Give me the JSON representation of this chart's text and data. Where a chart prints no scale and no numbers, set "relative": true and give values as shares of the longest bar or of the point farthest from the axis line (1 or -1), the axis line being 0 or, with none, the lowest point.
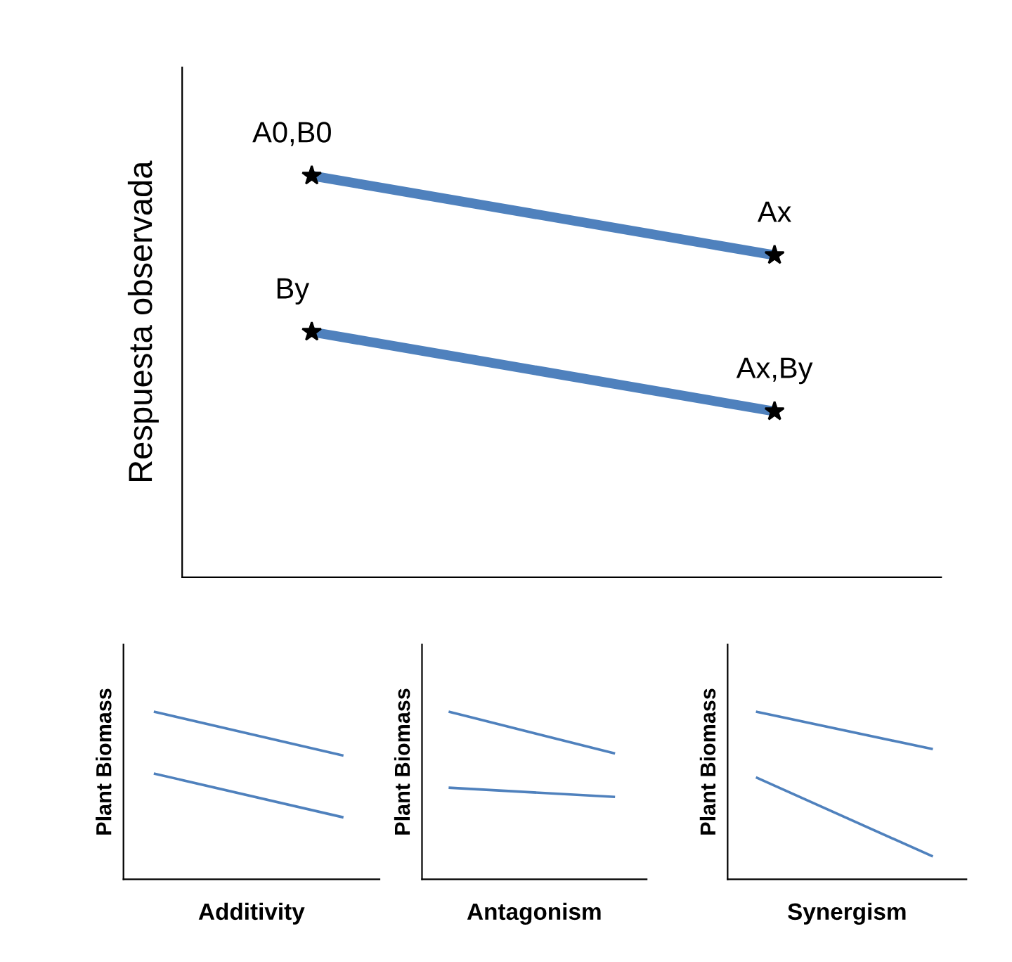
{
  "chart_data": [
    {
      "type": "line",
      "relative": true,
      "ylabel": "Respuesta observada",
      "categories": [
        null,
        null
      ],
      "marker": "star",
      "annotations": [
        "A0,B0",
        "Ax",
        "By",
        "Ax,By"
      ],
      "series": [
        {
          "color": "#4f81bd",
          "values": [
            1,
            0.802
          ]
        },
        {
          "color": "#4f81bd",
          "values": [
            0.611,
            0.413
          ]
        }
      ]
    },
    {
      "type": "line",
      "relative": true,
      "xlabel": "Additivity",
      "ylabel": "Plant Biomass",
      "categories": [
        null,
        null
      ],
      "series": [
        {
          "color": "#4f81bd",
          "values": [
            1,
            0.738
          ]
        },
        {
          "color": "#4f81bd",
          "values": [
            0.631,
            0.369
          ]
        }
      ]
    },
    {
      "type": "line",
      "relative": true,
      "xlabel": "Antagonism",
      "ylabel": "Plant Biomass",
      "categories": [
        null,
        null
      ],
      "series": [
        {
          "color": "#4f81bd",
          "values": [
            1,
            0.75
          ]
        },
        {
          "color": "#4f81bd",
          "values": [
            0.546,
            0.491
          ]
        }
      ]
    },
    {
      "type": "line",
      "relative": true,
      "xlabel": "Synergism",
      "ylabel": "Plant Biomass",
      "categories": [
        null,
        null
      ],
      "series": [
        {
          "color": "#4f81bd",
          "values": [
            1,
            0.776
          ]
        },
        {
          "color": "#4f81bd",
          "values": [
            0.608,
            0.136
          ]
        }
      ]
    }
  ]
}
